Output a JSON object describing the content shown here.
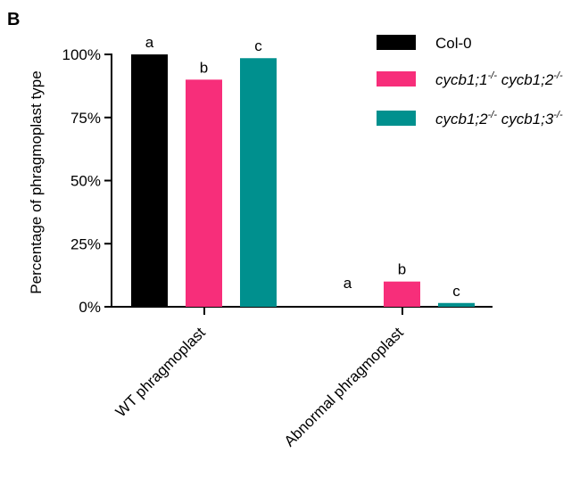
{
  "panel_label": "B",
  "chart_data": {
    "type": "bar",
    "ylabel": "Percentage of phragmoplast type",
    "ylim": [
      0,
      100
    ],
    "yticks": [
      "0%",
      "25%",
      "50%",
      "75%",
      "100%"
    ],
    "categories": [
      "WT phragmoplast",
      "Abnormal phragmoplast"
    ],
    "series": [
      {
        "name": "Col-0",
        "color": "#000000",
        "values": [
          100,
          0
        ],
        "sig": [
          "a",
          "a"
        ]
      },
      {
        "name": "cycb1;1-/- cycb1;2-/-",
        "color": "#F72E7A",
        "values": [
          90,
          10
        ],
        "sig": [
          "b",
          "b"
        ]
      },
      {
        "name": "cycb1;2-/- cycb1;3-/-",
        "color": "#00908E",
        "values": [
          98.5,
          1.5
        ],
        "sig": [
          "c",
          "c"
        ]
      }
    ],
    "legend": [
      {
        "parts": [
          {
            "text": "Col-0",
            "sup": false
          }
        ]
      },
      {
        "parts": [
          {
            "text": "cycb1;1",
            "sup": false
          },
          {
            "text": "-/-",
            "sup": true
          },
          {
            "text": " cycb1;2",
            "sup": false
          },
          {
            "text": "-/-",
            "sup": true
          }
        ]
      },
      {
        "parts": [
          {
            "text": "cycb1;2",
            "sup": false
          },
          {
            "text": "-/-",
            "sup": true
          },
          {
            "text": " cycb1;3",
            "sup": false
          },
          {
            "text": "-/-",
            "sup": true
          }
        ]
      }
    ],
    "legend_position": "top-right",
    "grid": false
  }
}
